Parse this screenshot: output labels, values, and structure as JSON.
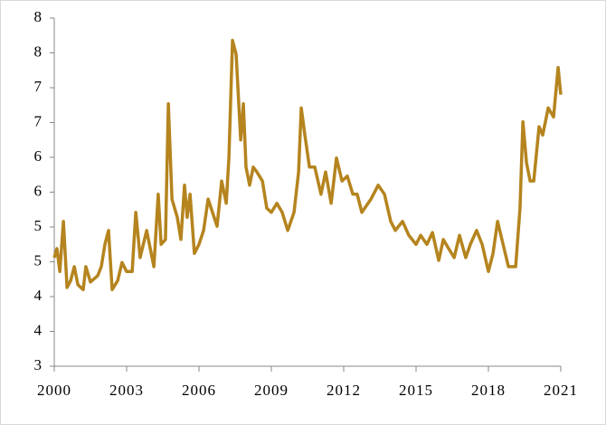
{
  "chart_data": {
    "type": "line",
    "x": [
      2000.0,
      2000.11,
      2000.23,
      2000.38,
      2000.53,
      2000.68,
      2000.83,
      2000.98,
      2001.2,
      2001.31,
      2001.5,
      2001.8,
      2001.95,
      2002.1,
      2002.25,
      2002.4,
      2002.63,
      2002.81,
      2003.0,
      2003.23,
      2003.38,
      2003.56,
      2003.83,
      2004.13,
      2004.31,
      2004.43,
      2004.61,
      2004.73,
      2004.88,
      2005.1,
      2005.25,
      2005.4,
      2005.51,
      2005.63,
      2005.81,
      2006.0,
      2006.19,
      2006.38,
      2006.56,
      2006.75,
      2006.94,
      2007.13,
      2007.24,
      2007.39,
      2007.54,
      2007.73,
      2007.84,
      2007.95,
      2008.1,
      2008.25,
      2008.4,
      2008.63,
      2008.81,
      2009.0,
      2009.23,
      2009.45,
      2009.68,
      2009.94,
      2010.13,
      2010.24,
      2010.39,
      2010.58,
      2010.8,
      2011.06,
      2011.25,
      2011.48,
      2011.7,
      2011.93,
      2012.15,
      2012.38,
      2012.56,
      2012.75,
      2013.13,
      2013.43,
      2013.69,
      2013.95,
      2014.14,
      2014.44,
      2014.7,
      2015.0,
      2015.19,
      2015.45,
      2015.68,
      2015.94,
      2016.13,
      2016.35,
      2016.58,
      2016.8,
      2017.06,
      2017.25,
      2017.51,
      2017.74,
      2018.0,
      2018.19,
      2018.38,
      2018.56,
      2018.83,
      2019.13,
      2019.31,
      2019.43,
      2019.58,
      2019.73,
      2019.88,
      2020.1,
      2020.25,
      2020.48,
      2020.7,
      2020.89,
      2021.0
    ],
    "series": [
      {
        "color": "#b5841e",
        "values": [
          4.56,
          4.69,
          4.36,
          5.08,
          4.13,
          4.23,
          4.43,
          4.17,
          4.1,
          4.43,
          4.21,
          4.3,
          4.43,
          4.75,
          4.95,
          4.1,
          4.23,
          4.49,
          4.36,
          4.36,
          5.21,
          4.56,
          4.95,
          4.43,
          5.47,
          4.75,
          4.82,
          6.77,
          5.4,
          5.14,
          4.82,
          5.6,
          5.14,
          5.47,
          4.62,
          4.75,
          4.95,
          5.4,
          5.21,
          5.01,
          5.66,
          5.34,
          5.99,
          7.68,
          7.48,
          6.25,
          6.77,
          5.86,
          5.6,
          5.86,
          5.79,
          5.66,
          5.27,
          5.21,
          5.34,
          5.21,
          4.95,
          5.21,
          5.79,
          6.71,
          6.32,
          5.86,
          5.86,
          5.47,
          5.79,
          5.34,
          5.99,
          5.66,
          5.73,
          5.47,
          5.47,
          5.21,
          5.4,
          5.6,
          5.47,
          5.08,
          4.95,
          5.08,
          4.88,
          4.75,
          4.88,
          4.75,
          4.92,
          4.52,
          4.82,
          4.69,
          4.56,
          4.88,
          4.56,
          4.75,
          4.95,
          4.75,
          4.36,
          4.62,
          5.08,
          4.82,
          4.43,
          4.43,
          5.27,
          6.51,
          5.92,
          5.66,
          5.66,
          6.44,
          6.32,
          6.71,
          6.58,
          7.29,
          6.9
        ]
      }
    ],
    "xlim": [
      2000,
      2021
    ],
    "xticks": [
      2000,
      2003,
      2006,
      2009,
      2012,
      2015,
      2018,
      2021
    ],
    "ylim": [
      3,
      8
    ],
    "yticks": [
      3,
      {
        "value": 3.5,
        "label": "4"
      },
      4,
      {
        "value": 4.5,
        "label": "5"
      },
      5,
      {
        "value": 5.5,
        "label": "6"
      },
      6,
      {
        "value": 6.5,
        "label": "7"
      },
      7,
      {
        "value": 7.5,
        "label": "8"
      },
      8
    ]
  }
}
